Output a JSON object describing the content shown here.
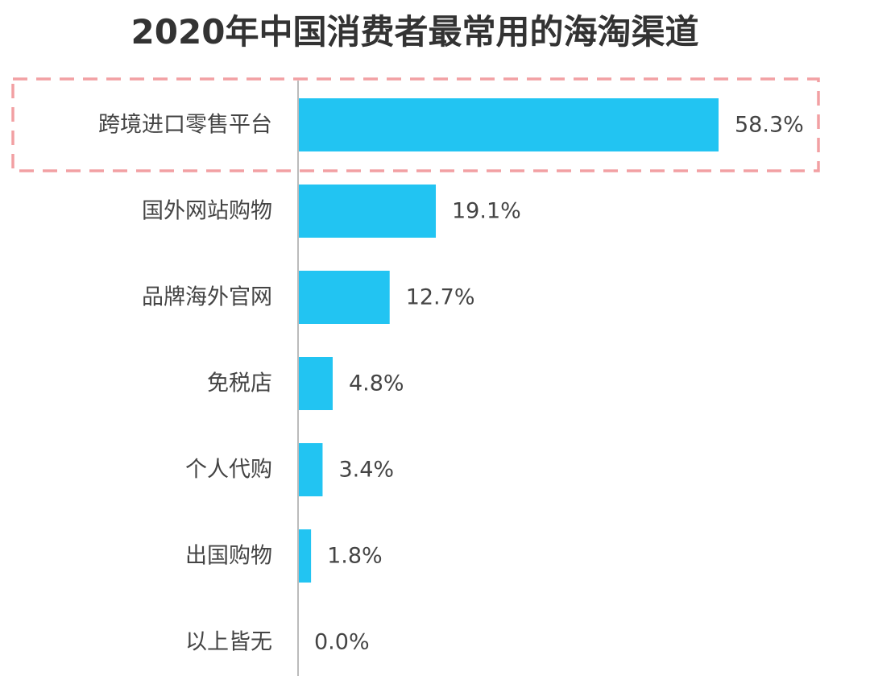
{
  "chart_data": {
    "type": "bar",
    "orientation": "horizontal",
    "title": "2020年中国消费者最常用的海淘渠道",
    "xlabel": "",
    "ylabel": "",
    "categories": [
      "跨境进口零售平台",
      "国外网站购物",
      "品牌海外官网",
      "免税店",
      "个人代购",
      "出国购物",
      "以上皆无"
    ],
    "values": [
      58.3,
      19.1,
      12.7,
      4.8,
      3.4,
      1.8,
      0.0
    ],
    "value_labels": [
      "58.3%",
      "19.1%",
      "12.7%",
      "4.8%",
      "3.4%",
      "1.8%",
      "0.0%"
    ],
    "xlim": [
      0,
      60
    ],
    "grid": false,
    "legend": "none",
    "highlighted_category": "跨境进口零售平台",
    "colors": {
      "bar": "#22C4F2",
      "highlight_border": "#F2A0A3",
      "axis": "#BBBBBB"
    }
  }
}
